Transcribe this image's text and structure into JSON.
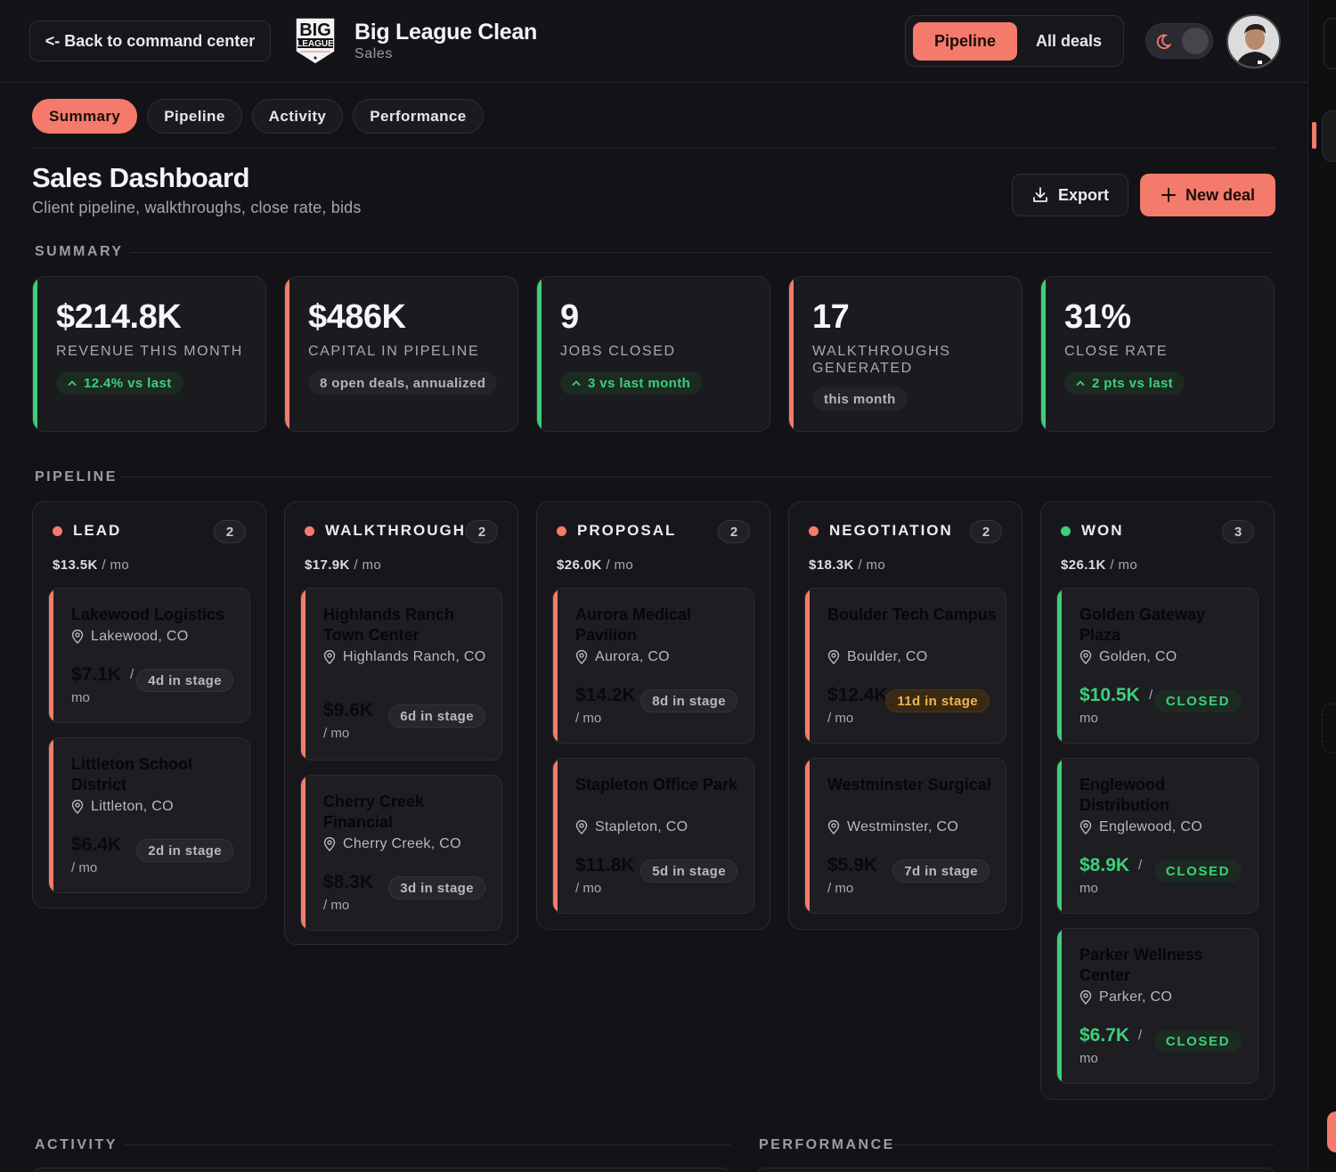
{
  "topbar": {
    "back_label": "<- Back to command center",
    "brand_title": "Big League Clean",
    "brand_sub": "Sales",
    "view_tabs": [
      "Pipeline",
      "All deals"
    ]
  },
  "subnav": [
    "Summary",
    "Pipeline",
    "Activity",
    "Performance"
  ],
  "header": {
    "title": "Sales Dashboard",
    "subtitle": "Client pipeline, walkthroughs, close rate, bids",
    "export_label": "Export",
    "new_deal_label": "New deal"
  },
  "sections": {
    "summary": "SUMMARY",
    "pipeline": "PIPELINE",
    "activity": "ACTIVITY",
    "performance": "PERFORMANCE"
  },
  "colors": {
    "accent": "#f47b6b",
    "positive": "#3ccf7a",
    "warning": "#f0b44a"
  },
  "kpis": [
    {
      "value": "$214.8K",
      "label": "REVENUE THIS MONTH",
      "chip": "12.4% vs last",
      "trend": "up",
      "accent": "#3ccf7a"
    },
    {
      "value": "$486K",
      "label": "CAPITAL IN PIPELINE",
      "chip": "8 open deals, annualized",
      "trend": "neutral",
      "accent": "#f47b6b"
    },
    {
      "value": "9",
      "label": "JOBS CLOSED",
      "chip": "3 vs last month",
      "trend": "up",
      "accent": "#3ccf7a"
    },
    {
      "value": "17",
      "label": "WALKTHROUGHS GENERATED",
      "chip": "this month",
      "trend": "neutral",
      "accent": "#f47b6b"
    },
    {
      "value": "31%",
      "label": "CLOSE RATE",
      "chip": "2 pts vs last",
      "trend": "up",
      "accent": "#3ccf7a"
    }
  ],
  "pipeline": [
    {
      "stage": "LEAD",
      "count": "2",
      "total": "$13.5K",
      "unit": "/ mo",
      "color": "#f47b6b",
      "deals": [
        {
          "name": "Lakewood Logistics",
          "location": "Lakewood, CO",
          "value": "$7.1K",
          "per": "/",
          "per2": "mo",
          "badge": "4d in stage"
        },
        {
          "name": "Littleton School District",
          "location": "Littleton, CO",
          "value": "$6.4K",
          "per": "/ mo",
          "badge": "2d in stage"
        }
      ]
    },
    {
      "stage": "WALKTHROUGH",
      "count": "2",
      "total": "$17.9K",
      "unit": "/ mo",
      "color": "#f47b6b",
      "deals": [
        {
          "name": "Highlands Ranch Town Center",
          "location": "Highlands Ranch, CO",
          "value": "$9.6K",
          "per": "/ mo",
          "badge": "6d in stage"
        },
        {
          "name": "Cherry Creek Financial",
          "location": "Cherry Creek, CO",
          "value": "$8.3K",
          "per": "/ mo",
          "badge": "3d in stage"
        }
      ]
    },
    {
      "stage": "PROPOSAL",
      "count": "2",
      "total": "$26.0K",
      "unit": "/ mo",
      "color": "#f47b6b",
      "deals": [
        {
          "name": "Aurora Medical Pavilion",
          "location": "Aurora, CO",
          "value": "$14.2K",
          "per": "/ mo",
          "badge": "8d in stage"
        },
        {
          "name": "Stapleton Office Park",
          "location": "Stapleton, CO",
          "value": "$11.8K",
          "per": "/ mo",
          "badge": "5d in stage"
        }
      ]
    },
    {
      "stage": "NEGOTIATION",
      "count": "2",
      "total": "$18.3K",
      "unit": "/ mo",
      "color": "#f47b6b",
      "deals": [
        {
          "name": "Boulder Tech Campus",
          "location": "Boulder, CO",
          "value": "$12.4K",
          "per": "/ mo",
          "badge": "11d in stage",
          "badge_style": "warn"
        },
        {
          "name": "Westminster Surgical",
          "location": "Westminster, CO",
          "value": "$5.9K",
          "per": "/ mo",
          "badge": "7d in stage"
        }
      ]
    },
    {
      "stage": "WON",
      "count": "3",
      "total": "$26.1K",
      "unit": "/ mo",
      "color": "#3ccf7a",
      "deals": [
        {
          "name": "Golden Gateway Plaza",
          "location": "Golden, CO",
          "value": "$10.5K",
          "per": "/",
          "per2": "mo",
          "badge": "CLOSED",
          "badge_style": "closed"
        },
        {
          "name": "Englewood Distribution",
          "location": "Englewood, CO",
          "value": "$8.9K",
          "per": "/",
          "per2": "mo",
          "badge": "CLOSED",
          "badge_style": "closed"
        },
        {
          "name": "Parker Wellness Center",
          "location": "Parker, CO",
          "value": "$6.7K",
          "per": "/",
          "per2": "mo",
          "badge": "CLOSED",
          "badge_style": "closed"
        }
      ]
    }
  ]
}
